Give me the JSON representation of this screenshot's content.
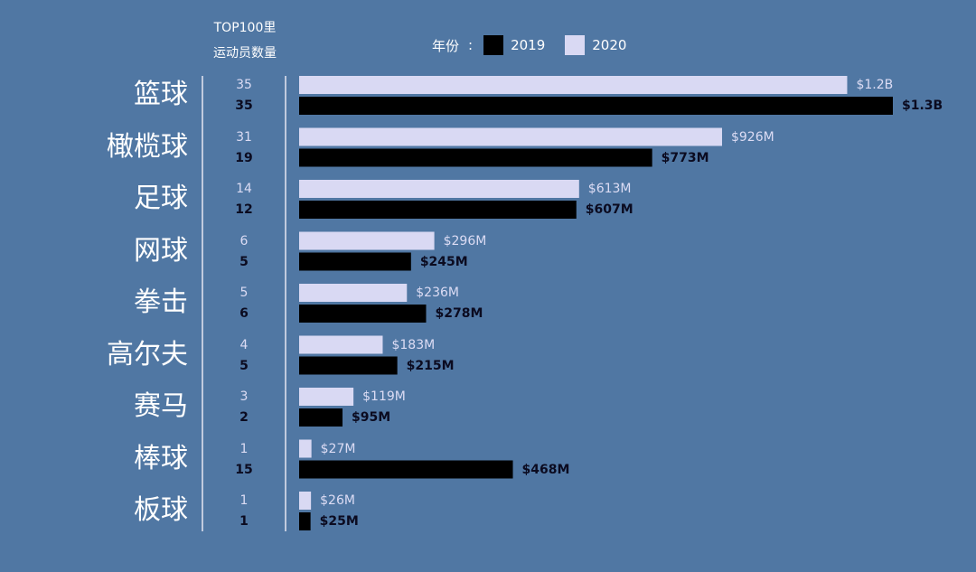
{
  "header": {
    "line1": "TOP100里",
    "line2": "运动员数量"
  },
  "legend": {
    "title": "年份",
    "colon": ":",
    "items": [
      {
        "label": "2019",
        "color": "#000000"
      },
      {
        "label": "2020",
        "color": "#d9d9f3"
      }
    ]
  },
  "colors": {
    "background": "#5077a3",
    "bar2020": "#d9d9f3",
    "bar2019": "#000000",
    "axis": "#e6e6f2"
  },
  "chart_data": {
    "type": "bar",
    "orientation": "horizontal",
    "categories": [
      "篮球",
      "橄榄球",
      "足球",
      "网球",
      "拳击",
      "高尔夫",
      "赛马",
      "棒球",
      "板球"
    ],
    "series": [
      {
        "name": "2020",
        "values": [
          1200,
          926,
          613,
          296,
          236,
          183,
          119,
          27,
          26
        ],
        "labels": [
          "$1.2B",
          "$926M",
          "$613M",
          "$296M",
          "$236M",
          "$183M",
          "$119M",
          "$27M",
          "$26M"
        ],
        "counts": [
          35,
          31,
          14,
          6,
          5,
          4,
          3,
          1,
          1
        ]
      },
      {
        "name": "2019",
        "values": [
          1300,
          773,
          607,
          245,
          278,
          215,
          95,
          468,
          25
        ],
        "labels": [
          "$1.3B",
          "$773M",
          "$607M",
          "$245M",
          "$278M",
          "$215M",
          "$95M",
          "$468M",
          "$25M"
        ],
        "counts": [
          35,
          19,
          12,
          5,
          6,
          5,
          2,
          15,
          1
        ]
      }
    ],
    "xlim": [
      0,
      1300
    ],
    "grid": false,
    "legend_position": "top"
  }
}
